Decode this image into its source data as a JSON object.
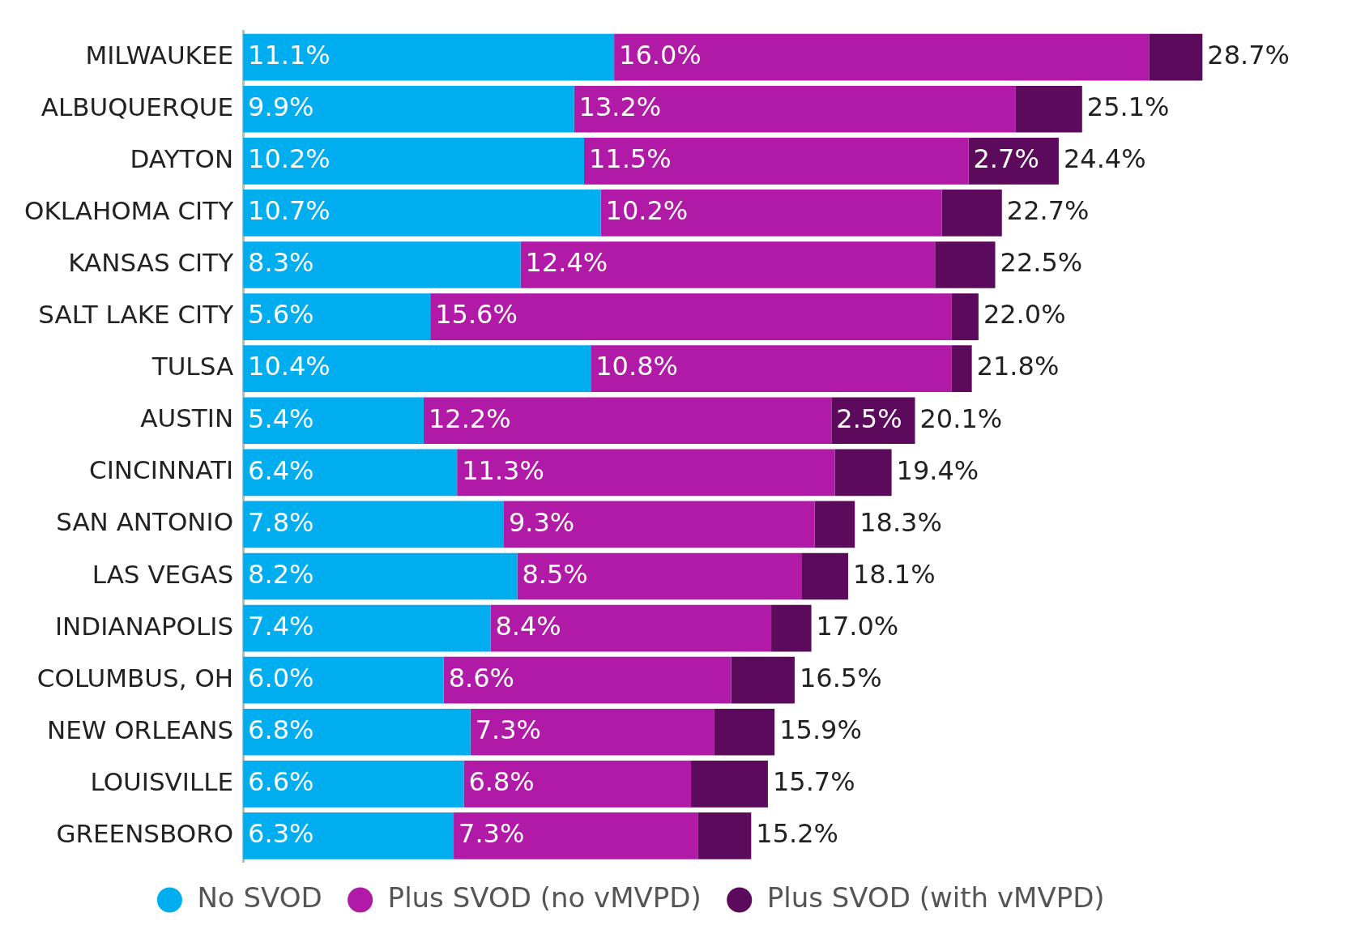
{
  "chart_data": {
    "type": "bar",
    "orientation": "horizontal",
    "stacked": true,
    "grid": false,
    "legend": "bottom",
    "categories": [
      "MILWAUKEE",
      "ALBUQUERQUE",
      "DAYTON",
      "OKLAHOMA CITY",
      "KANSAS CITY",
      "SALT LAKE CITY",
      "TULSA",
      "AUSTIN",
      "CINCINNATI",
      "SAN ANTONIO",
      "LAS VEGAS",
      "INDIANAPOLIS",
      "COLUMBUS, OH",
      "NEW ORLEANS",
      "LOUISVILLE",
      "GREENSBORO"
    ],
    "series": [
      {
        "name": "No SVOD",
        "color": "#00aeef",
        "values": [
          11.1,
          9.9,
          10.2,
          10.7,
          8.3,
          5.6,
          10.4,
          5.4,
          6.4,
          7.8,
          8.2,
          7.4,
          6.0,
          6.8,
          6.6,
          6.3
        ],
        "value_labels": [
          "11.1%",
          "9.9%",
          "10.2%",
          "10.7%",
          "8.3%",
          "5.6%",
          "10.4%",
          "5.4%",
          "6.4%",
          "7.8%",
          "8.2%",
          "7.4%",
          "6.0%",
          "6.8%",
          "6.6%",
          "6.3%"
        ]
      },
      {
        "name": "Plus SVOD (no vMVPD)",
        "color": "#b01aa7",
        "values": [
          16.0,
          13.2,
          11.5,
          10.2,
          12.4,
          15.6,
          10.8,
          12.2,
          11.3,
          9.3,
          8.5,
          8.4,
          8.6,
          7.3,
          6.8,
          7.3
        ],
        "value_labels": [
          "16.0%",
          "13.2%",
          "11.5%",
          "10.2%",
          "12.4%",
          "15.6%",
          "10.8%",
          "12.2%",
          "11.3%",
          "9.3%",
          "8.5%",
          "8.4%",
          "8.6%",
          "7.3%",
          "6.8%",
          "7.3%"
        ]
      },
      {
        "name": "Plus SVOD (with vMVPD)",
        "color": "#5c0a5c",
        "values": [
          1.6,
          2.0,
          2.7,
          1.8,
          1.8,
          0.8,
          0.6,
          2.5,
          1.7,
          1.2,
          1.4,
          1.2,
          1.9,
          1.8,
          2.3,
          1.6
        ],
        "value_labels": [
          null,
          null,
          "2.7%",
          null,
          null,
          null,
          null,
          "2.5%",
          null,
          null,
          null,
          null,
          null,
          null,
          null,
          null
        ]
      }
    ],
    "totals": [
      "28.7%",
      "25.1%",
      "24.4%",
      "22.7%",
      "22.5%",
      "22.0%",
      "21.8%",
      "20.1%",
      "19.4%",
      "18.3%",
      "18.1%",
      "17.0%",
      "16.5%",
      "15.9%",
      "15.7%",
      "15.2%"
    ]
  }
}
